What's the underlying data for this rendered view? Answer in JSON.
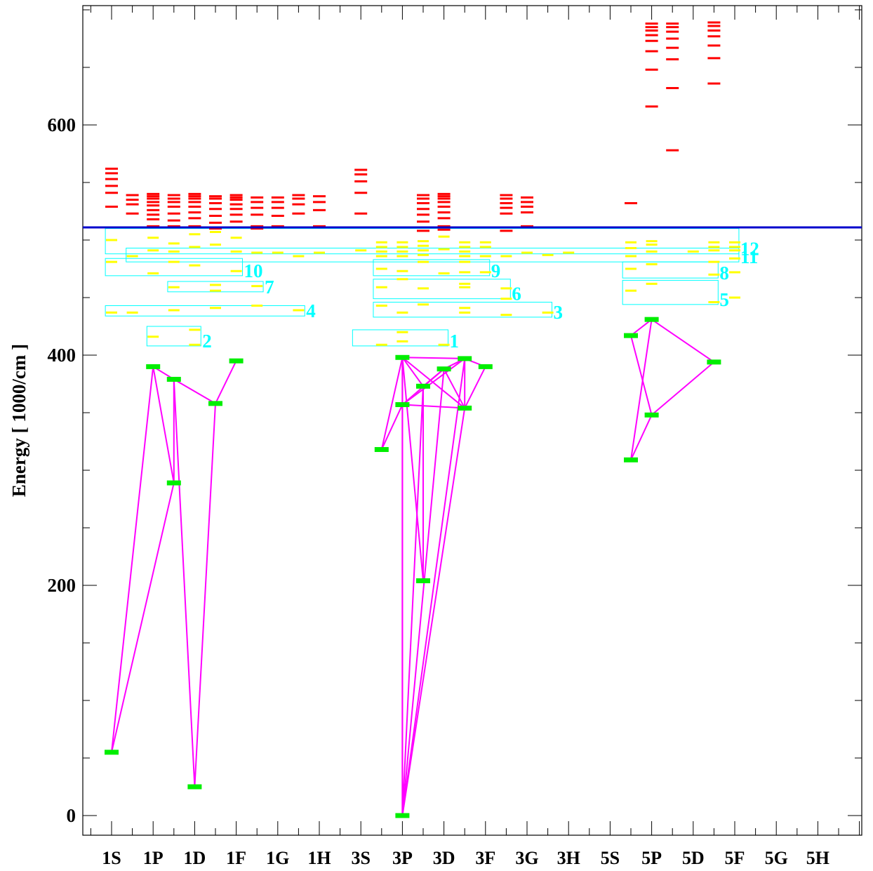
{
  "chart_data": {
    "type": "scatter",
    "ylabel": "Energy  [ 1000/cm ]",
    "xlabel": "",
    "title": "",
    "ylim": [
      -20,
      700
    ],
    "y_ticks": [
      0,
      200,
      400,
      600
    ],
    "y_tick_labels": [
      "0",
      "200",
      "400",
      "600"
    ],
    "categories": [
      "1S",
      "1P",
      "1D",
      "1F",
      "1G",
      "1H",
      "3S",
      "3P",
      "3D",
      "3F",
      "3G",
      "3H",
      "5S",
      "5P",
      "5D",
      "5F",
      "5G",
      "5H"
    ],
    "threshold_energy": 511,
    "colors": {
      "ground_levels": "#00ee00",
      "transitions": "#ff00ff",
      "bound_levels": "#ffff00",
      "continuum_levels": "#ff0000",
      "groups": "#00ffff",
      "threshold": "#0000cc"
    },
    "ground_levels": [
      {
        "id": "a",
        "x": 0,
        "y": 55
      },
      {
        "id": "b",
        "x": 1,
        "y": 390
      },
      {
        "id": "c",
        "x": 1.5,
        "y": 379
      },
      {
        "id": "d",
        "x": 1.5,
        "y": 289
      },
      {
        "id": "e",
        "x": 2,
        "y": 25
      },
      {
        "id": "f",
        "x": 2.5,
        "y": 358
      },
      {
        "id": "g",
        "x": 3,
        "y": 395
      },
      {
        "id": "h",
        "x": 6.5,
        "y": 318
      },
      {
        "id": "i",
        "x": 7,
        "y": 398
      },
      {
        "id": "j",
        "x": 7,
        "y": 357
      },
      {
        "id": "k",
        "x": 7,
        "y": 0
      },
      {
        "id": "l",
        "x": 7.5,
        "y": 373
      },
      {
        "id": "m",
        "x": 7.5,
        "y": 204
      },
      {
        "id": "n",
        "x": 8,
        "y": 388
      },
      {
        "id": "o",
        "x": 8.5,
        "y": 397
      },
      {
        "id": "p",
        "x": 8.5,
        "y": 354
      },
      {
        "id": "q",
        "x": 9,
        "y": 390
      },
      {
        "id": "r",
        "x": 12.5,
        "y": 417
      },
      {
        "id": "s",
        "x": 13,
        "y": 431
      },
      {
        "id": "t",
        "x": 13,
        "y": 348
      },
      {
        "id": "u",
        "x": 12.5,
        "y": 309
      },
      {
        "id": "v",
        "x": 14.5,
        "y": 394
      }
    ],
    "transitions": [
      [
        "a",
        "b"
      ],
      [
        "a",
        "d"
      ],
      [
        "b",
        "d"
      ],
      [
        "b",
        "c"
      ],
      [
        "c",
        "d"
      ],
      [
        "c",
        "e"
      ],
      [
        "c",
        "f"
      ],
      [
        "f",
        "e"
      ],
      [
        "f",
        "g"
      ],
      [
        "h",
        "i"
      ],
      [
        "h",
        "j"
      ],
      [
        "i",
        "j"
      ],
      [
        "i",
        "l"
      ],
      [
        "i",
        "m"
      ],
      [
        "i",
        "k"
      ],
      [
        "i",
        "o"
      ],
      [
        "i",
        "p"
      ],
      [
        "j",
        "o"
      ],
      [
        "j",
        "p"
      ],
      [
        "j",
        "k"
      ],
      [
        "j",
        "n"
      ],
      [
        "l",
        "n"
      ],
      [
        "l",
        "k"
      ],
      [
        "l",
        "m"
      ],
      [
        "n",
        "o"
      ],
      [
        "n",
        "k"
      ],
      [
        "n",
        "p"
      ],
      [
        "o",
        "k"
      ],
      [
        "o",
        "p"
      ],
      [
        "o",
        "q"
      ],
      [
        "p",
        "q"
      ],
      [
        "p",
        "k"
      ],
      [
        "r",
        "s"
      ],
      [
        "r",
        "t"
      ],
      [
        "s",
        "u"
      ],
      [
        "s",
        "v"
      ],
      [
        "t",
        "u"
      ],
      [
        "t",
        "v"
      ]
    ],
    "bound_levels": [
      {
        "x": 0,
        "y": 500
      },
      {
        "x": 0,
        "y": 481
      },
      {
        "x": 0,
        "y": 437
      },
      {
        "x": 0.5,
        "y": 486
      },
      {
        "x": 0.5,
        "y": 437
      },
      {
        "x": 1,
        "y": 502
      },
      {
        "x": 1,
        "y": 491
      },
      {
        "x": 1,
        "y": 471
      },
      {
        "x": 1,
        "y": 416
      },
      {
        "x": 1.5,
        "y": 497
      },
      {
        "x": 1.5,
        "y": 490
      },
      {
        "x": 1.5,
        "y": 481
      },
      {
        "x": 1.5,
        "y": 459
      },
      {
        "x": 1.5,
        "y": 439
      },
      {
        "x": 2,
        "y": 505
      },
      {
        "x": 2,
        "y": 494
      },
      {
        "x": 2,
        "y": 478
      },
      {
        "x": 2,
        "y": 422
      },
      {
        "x": 2,
        "y": 409
      },
      {
        "x": 2.5,
        "y": 507
      },
      {
        "x": 2.5,
        "y": 496
      },
      {
        "x": 2.5,
        "y": 461
      },
      {
        "x": 2.5,
        "y": 456
      },
      {
        "x": 2.5,
        "y": 441
      },
      {
        "x": 3,
        "y": 502
      },
      {
        "x": 3,
        "y": 490
      },
      {
        "x": 3,
        "y": 473
      },
      {
        "x": 3.5,
        "y": 489
      },
      {
        "x": 3.5,
        "y": 460
      },
      {
        "x": 3.5,
        "y": 443
      },
      {
        "x": 4,
        "y": 489
      },
      {
        "x": 4.5,
        "y": 486
      },
      {
        "x": 4.5,
        "y": 439
      },
      {
        "x": 5,
        "y": 489
      },
      {
        "x": 6,
        "y": 491
      },
      {
        "x": 6.5,
        "y": 409
      },
      {
        "x": 6.5,
        "y": 498
      },
      {
        "x": 6.5,
        "y": 494
      },
      {
        "x": 6.5,
        "y": 490
      },
      {
        "x": 6.5,
        "y": 486
      },
      {
        "x": 6.5,
        "y": 475
      },
      {
        "x": 6.5,
        "y": 459
      },
      {
        "x": 6.5,
        "y": 443
      },
      {
        "x": 7,
        "y": 498
      },
      {
        "x": 7,
        "y": 494
      },
      {
        "x": 7,
        "y": 490
      },
      {
        "x": 7,
        "y": 486
      },
      {
        "x": 7,
        "y": 473
      },
      {
        "x": 7,
        "y": 466
      },
      {
        "x": 7,
        "y": 437
      },
      {
        "x": 7,
        "y": 420
      },
      {
        "x": 7,
        "y": 412
      },
      {
        "x": 7.5,
        "y": 499
      },
      {
        "x": 7.5,
        "y": 495
      },
      {
        "x": 7.5,
        "y": 491
      },
      {
        "x": 7.5,
        "y": 487
      },
      {
        "x": 7.5,
        "y": 481
      },
      {
        "x": 7.5,
        "y": 458
      },
      {
        "x": 7.5,
        "y": 444
      },
      {
        "x": 8,
        "y": 503
      },
      {
        "x": 8,
        "y": 492
      },
      {
        "x": 8,
        "y": 471
      },
      {
        "x": 8,
        "y": 409
      },
      {
        "x": 8.5,
        "y": 498
      },
      {
        "x": 8.5,
        "y": 494
      },
      {
        "x": 8.5,
        "y": 490
      },
      {
        "x": 8.5,
        "y": 486
      },
      {
        "x": 8.5,
        "y": 481
      },
      {
        "x": 8.5,
        "y": 472
      },
      {
        "x": 8.5,
        "y": 462
      },
      {
        "x": 8.5,
        "y": 459
      },
      {
        "x": 8.5,
        "y": 441
      },
      {
        "x": 8.5,
        "y": 437
      },
      {
        "x": 9,
        "y": 498
      },
      {
        "x": 9,
        "y": 494
      },
      {
        "x": 9,
        "y": 486
      },
      {
        "x": 9,
        "y": 472
      },
      {
        "x": 9.5,
        "y": 486
      },
      {
        "x": 9.5,
        "y": 458
      },
      {
        "x": 9.5,
        "y": 449
      },
      {
        "x": 9.5,
        "y": 435
      },
      {
        "x": 10,
        "y": 489
      },
      {
        "x": 10.5,
        "y": 487
      },
      {
        "x": 10.5,
        "y": 437
      },
      {
        "x": 11,
        "y": 489
      },
      {
        "x": 12.5,
        "y": 498
      },
      {
        "x": 12.5,
        "y": 493
      },
      {
        "x": 12.5,
        "y": 486
      },
      {
        "x": 12.5,
        "y": 475
      },
      {
        "x": 12.5,
        "y": 456
      },
      {
        "x": 13,
        "y": 499
      },
      {
        "x": 13,
        "y": 496
      },
      {
        "x": 13,
        "y": 490
      },
      {
        "x": 13,
        "y": 479
      },
      {
        "x": 13,
        "y": 462
      },
      {
        "x": 14,
        "y": 490
      },
      {
        "x": 14.5,
        "y": 498
      },
      {
        "x": 14.5,
        "y": 494
      },
      {
        "x": 14.5,
        "y": 491
      },
      {
        "x": 14.5,
        "y": 481
      },
      {
        "x": 14.5,
        "y": 470
      },
      {
        "x": 14.5,
        "y": 446
      },
      {
        "x": 15,
        "y": 498
      },
      {
        "x": 15,
        "y": 494
      },
      {
        "x": 15,
        "y": 491
      },
      {
        "x": 15,
        "y": 484
      },
      {
        "x": 15,
        "y": 472
      },
      {
        "x": 15,
        "y": 450
      }
    ],
    "continuum_levels": [
      {
        "x": 0,
        "y": [
          562,
          558,
          553,
          547,
          541,
          529
        ]
      },
      {
        "x": 0.5,
        "y": [
          539,
          535,
          531,
          523,
          511
        ]
      },
      {
        "x": 1,
        "y": [
          540,
          538,
          536,
          533,
          530,
          526,
          522,
          518,
          512
        ]
      },
      {
        "x": 1.5,
        "y": [
          539,
          536,
          533,
          529,
          523,
          517,
          512
        ]
      },
      {
        "x": 2,
        "y": [
          540,
          538,
          536,
          533,
          529,
          524,
          519,
          512
        ]
      },
      {
        "x": 2.5,
        "y": [
          538,
          536,
          532,
          527,
          521,
          515,
          510
        ]
      },
      {
        "x": 3,
        "y": [
          539,
          537,
          535,
          531,
          527,
          522,
          516,
          511
        ]
      },
      {
        "x": 3.5,
        "y": [
          537,
          533,
          528,
          522,
          512,
          510
        ]
      },
      {
        "x": 4,
        "y": [
          537,
          533,
          528,
          521,
          512
        ]
      },
      {
        "x": 4.5,
        "y": [
          539,
          536,
          531,
          523,
          511
        ]
      },
      {
        "x": 5,
        "y": [
          538,
          533,
          526,
          512
        ]
      },
      {
        "x": 6,
        "y": [
          561,
          557,
          551,
          541,
          523
        ]
      },
      {
        "x": 7.5,
        "y": [
          539,
          536,
          532,
          527,
          522,
          516,
          511,
          508
        ]
      },
      {
        "x": 8,
        "y": [
          540,
          538,
          536,
          533,
          529,
          524,
          519,
          512,
          509
        ]
      },
      {
        "x": 9.5,
        "y": [
          539,
          536,
          532,
          528,
          523,
          508
        ]
      },
      {
        "x": 10,
        "y": [
          537,
          533,
          529,
          524,
          512
        ]
      },
      {
        "x": 13,
        "y": [
          688,
          685,
          682,
          678,
          673,
          664,
          648,
          616
        ]
      },
      {
        "x": 13.5,
        "y": [
          688,
          685,
          681,
          675,
          667,
          657,
          632,
          578
        ]
      },
      {
        "x": 12.5,
        "y": [
          532
        ]
      },
      {
        "x": 14.5,
        "y": [
          689,
          686,
          682,
          677,
          669,
          658,
          636
        ]
      }
    ],
    "groups": [
      {
        "label": "1",
        "x0": 5.8,
        "x1": 8.1,
        "y0": 408,
        "y1": 422
      },
      {
        "label": "2",
        "x0": 0.85,
        "x1": 2.15,
        "y0": 408,
        "y1": 425
      },
      {
        "label": "3",
        "x0": 6.3,
        "x1": 10.6,
        "y0": 433,
        "y1": 446
      },
      {
        "label": "4",
        "x0": -0.15,
        "x1": 4.65,
        "y0": 434,
        "y1": 443
      },
      {
        "label": "5",
        "x0": 12.3,
        "x1": 14.6,
        "y0": 444,
        "y1": 465
      },
      {
        "label": "6",
        "x0": 6.3,
        "x1": 9.6,
        "y0": 449,
        "y1": 466
      },
      {
        "label": "7",
        "x0": 1.35,
        "x1": 3.65,
        "y0": 455,
        "y1": 464
      },
      {
        "label": "8",
        "x0": 12.3,
        "x1": 14.6,
        "y0": 467,
        "y1": 481
      },
      {
        "label": "9",
        "x0": 6.3,
        "x1": 9.1,
        "y0": 469,
        "y1": 483
      },
      {
        "label": "10",
        "x0": -0.15,
        "x1": 3.15,
        "y0": 469,
        "y1": 484
      },
      {
        "label": "11",
        "x0": 0.35,
        "x1": 15.1,
        "y0": 481,
        "y1": 493
      },
      {
        "label": "12",
        "x0": -0.15,
        "x1": 15.1,
        "y0": 488,
        "y1": 510
      }
    ]
  }
}
